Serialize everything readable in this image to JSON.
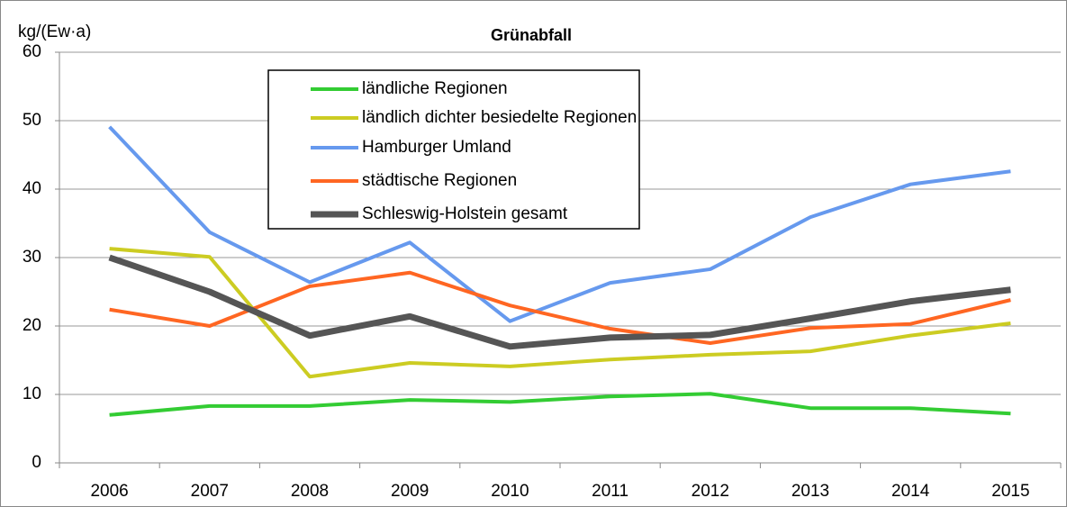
{
  "chart_data": {
    "type": "line",
    "title": "Grünabfall",
    "y_label": "kg/(Ew·a)",
    "categories": [
      "2006",
      "2007",
      "2008",
      "2009",
      "2010",
      "2011",
      "2012",
      "2013",
      "2014",
      "2015"
    ],
    "ylim": [
      0,
      60
    ],
    "yticks": [
      0,
      10,
      20,
      30,
      40,
      50,
      60
    ],
    "grid": true,
    "series": [
      {
        "name": "ländliche Regionen",
        "color": "#33cc33",
        "values": [
          7.0,
          8.3,
          8.3,
          9.2,
          8.9,
          9.7,
          10.1,
          8.0,
          8.0,
          7.2
        ]
      },
      {
        "name": "ländlich dichter besiedelte Regionen",
        "color": "#cccc22",
        "values": [
          31.3,
          30.1,
          12.6,
          14.6,
          14.1,
          15.1,
          15.8,
          16.3,
          18.6,
          20.4
        ]
      },
      {
        "name": "Hamburger Umland",
        "color": "#6699ee",
        "values": [
          49.1,
          33.7,
          26.4,
          32.2,
          20.7,
          26.3,
          28.3,
          35.9,
          40.7,
          42.6
        ]
      },
      {
        "name": "städtische Regionen",
        "color": "#ff6622",
        "values": [
          22.4,
          20.0,
          25.8,
          27.8,
          23.0,
          19.6,
          17.5,
          19.7,
          20.3,
          23.8
        ]
      },
      {
        "name": "Schleswig-Holstein gesamt",
        "color": "#555555",
        "values": [
          30.0,
          25.0,
          18.6,
          21.4,
          17.0,
          18.3,
          18.7,
          21.1,
          23.6,
          25.3
        ]
      }
    ]
  }
}
